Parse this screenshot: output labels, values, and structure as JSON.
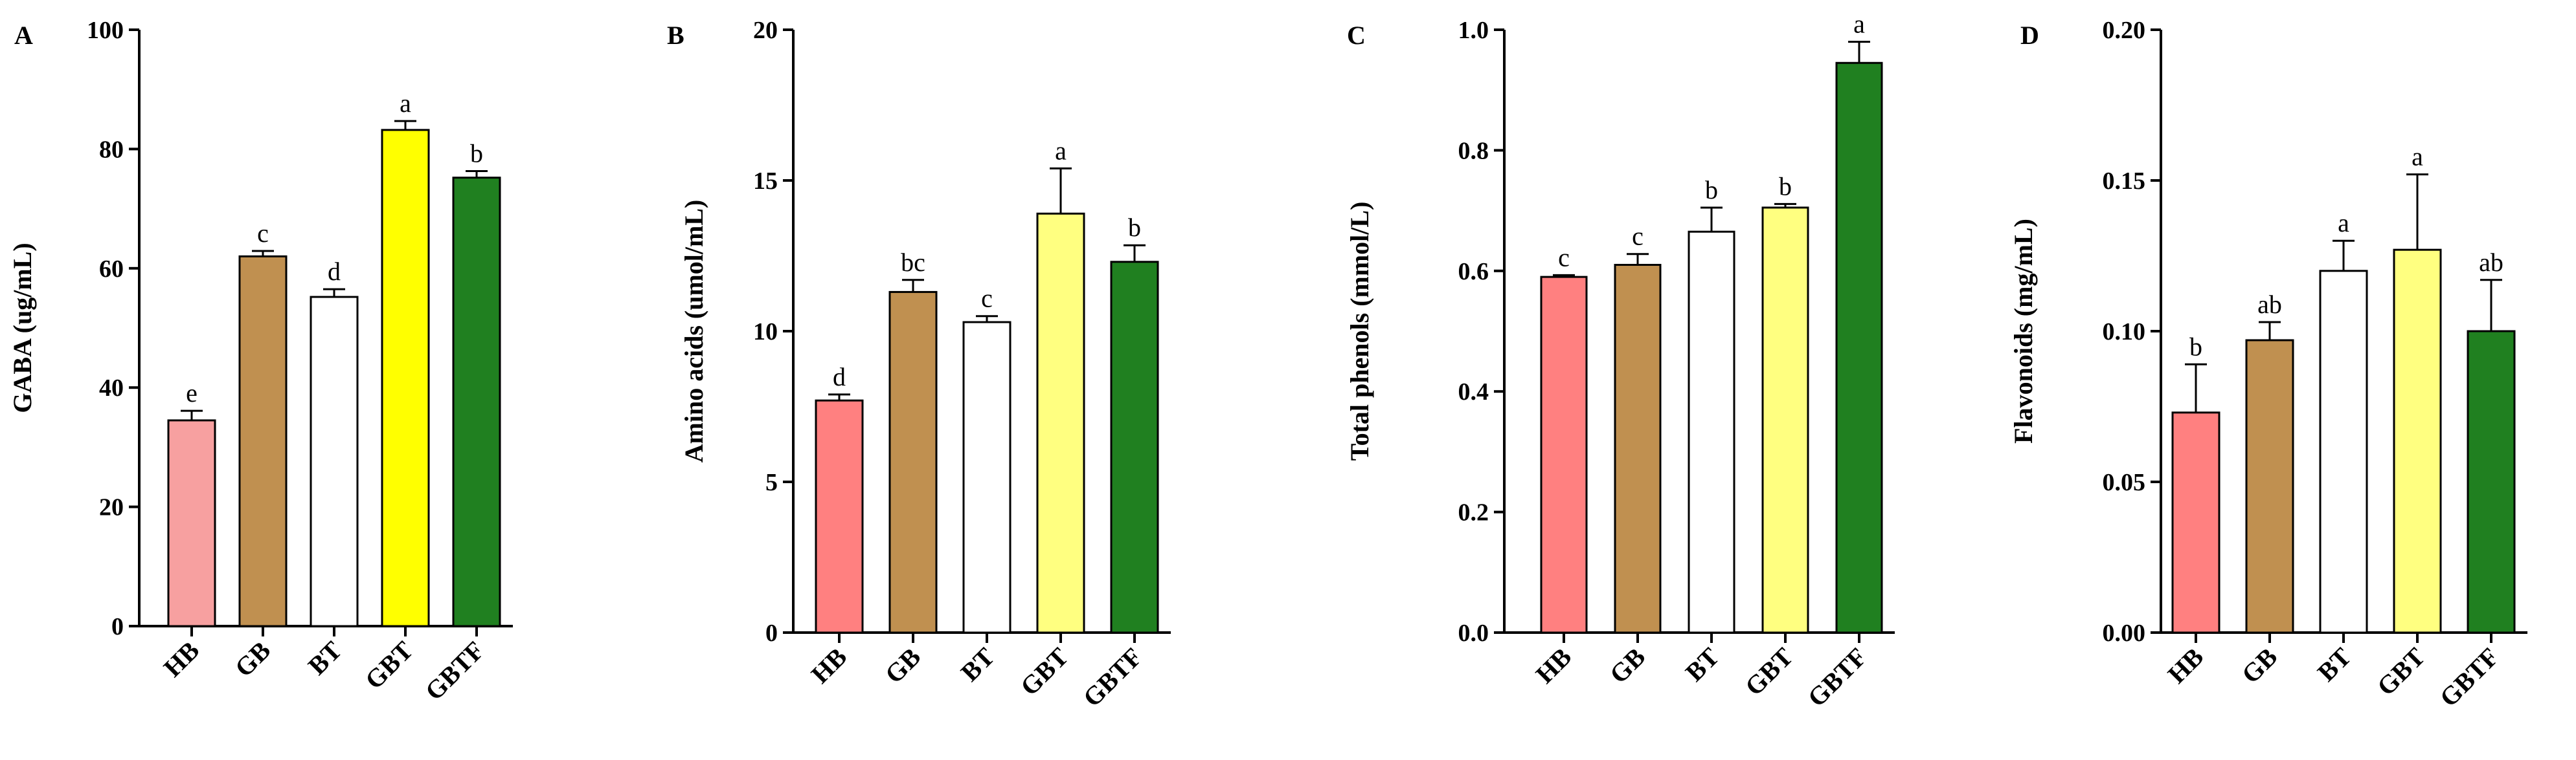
{
  "chart_data": [
    {
      "type": "bar",
      "panel": "A",
      "ylabel": "GABA (ug/mL)",
      "xlabel": "",
      "ylim": [
        0,
        100
      ],
      "yticks": [
        "0",
        "20",
        "40",
        "60",
        "80",
        "100"
      ],
      "categories": [
        "HB",
        "GB",
        "BT",
        "GBT",
        "GBTF"
      ],
      "values": [
        34.5,
        62,
        55.2,
        83.2,
        75.2
      ],
      "errors": [
        1.6,
        0.9,
        1.3,
        1.5,
        1.1
      ],
      "sig_letters": [
        "e",
        "c",
        "d",
        "a",
        "b"
      ],
      "colors": [
        "#f7a0a0",
        "#c09050",
        "#ffffff",
        "#ffff00",
        "#208020"
      ]
    },
    {
      "type": "bar",
      "panel": "B",
      "ylabel": "Amino acids (umol/mL)",
      "xlabel": "",
      "ylim": [
        0,
        20
      ],
      "yticks": [
        "0",
        "5",
        "10",
        "15",
        "20"
      ],
      "categories": [
        "HB",
        "GB",
        "BT",
        "GBT",
        "GBTF"
      ],
      "values": [
        7.7,
        11.3,
        10.3,
        13.9,
        12.3
      ],
      "errors": [
        0.2,
        0.4,
        0.2,
        1.5,
        0.55
      ],
      "sig_letters": [
        "d",
        "bc",
        "c",
        "a",
        "b"
      ],
      "colors": [
        "#ff8080",
        "#c09050",
        "#ffffff",
        "#ffff80",
        "#208020"
      ]
    },
    {
      "type": "bar",
      "panel": "C",
      "ylabel": "Total phenols (mmol/L)",
      "xlabel": "",
      "ylim": [
        0,
        1.0
      ],
      "yticks": [
        "0.0",
        "0.2",
        "0.4",
        "0.6",
        "0.8",
        "1.0"
      ],
      "categories": [
        "HB",
        "GB",
        "BT",
        "GBT",
        "GBTF"
      ],
      "values": [
        0.59,
        0.61,
        0.665,
        0.705,
        0.945
      ],
      "errors": [
        0.003,
        0.018,
        0.04,
        0.006,
        0.035
      ],
      "sig_letters": [
        "c",
        "c",
        "b",
        "b",
        "a"
      ],
      "colors": [
        "#ff8080",
        "#c09050",
        "#ffffff",
        "#ffff80",
        "#208020"
      ]
    },
    {
      "type": "bar",
      "panel": "D",
      "ylabel": "Flavonoids (mg/mL)",
      "xlabel": "",
      "ylim": [
        0,
        0.2
      ],
      "yticks": [
        "0.00",
        "0.05",
        "0.10",
        "0.15",
        "0.20"
      ],
      "categories": [
        "HB",
        "GB",
        "BT",
        "GBT",
        "GBTF"
      ],
      "values": [
        0.073,
        0.097,
        0.12,
        0.127,
        0.1
      ],
      "errors": [
        0.016,
        0.006,
        0.01,
        0.025,
        0.017
      ],
      "sig_letters": [
        "b",
        "ab",
        "a",
        "a",
        "ab"
      ],
      "colors": [
        "#ff8080",
        "#c09050",
        "#ffffff",
        "#ffff80",
        "#208020"
      ]
    }
  ]
}
